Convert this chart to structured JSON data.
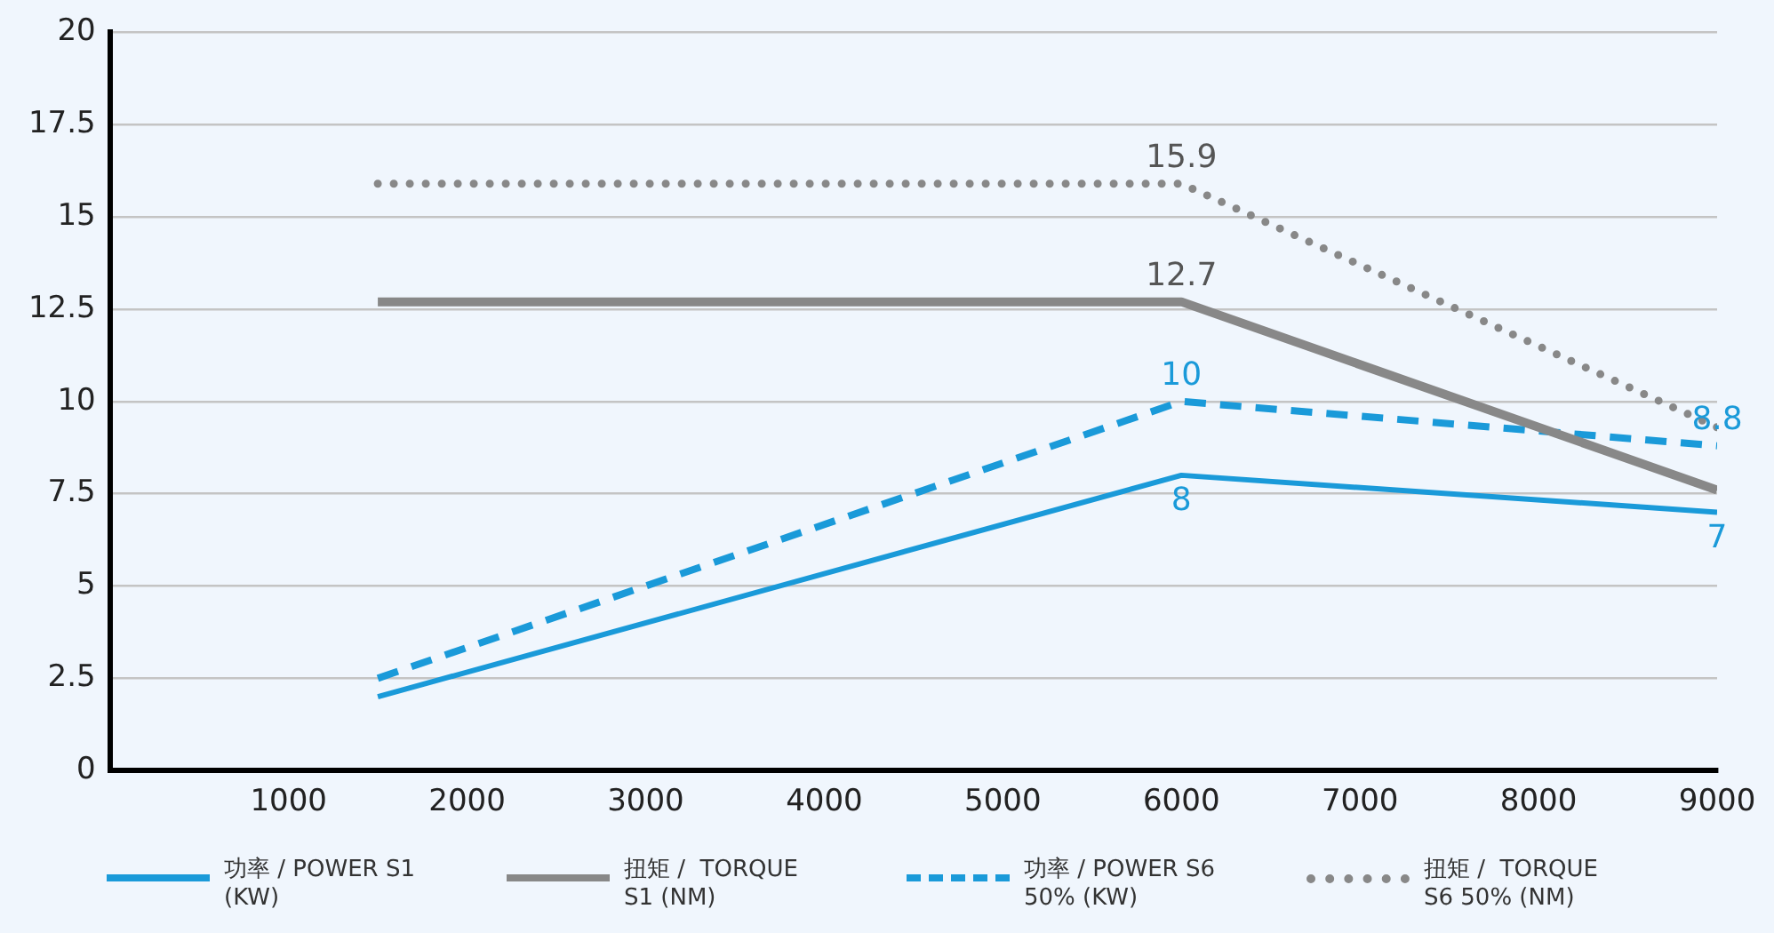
{
  "chart_data": {
    "type": "line",
    "x": [
      1500,
      6000,
      9000
    ],
    "series": [
      {
        "name": "功率 / POWER S1 (KW)",
        "color": "#1a9ad9",
        "values": [
          2,
          8,
          7
        ],
        "value_labels": [
          null,
          "8",
          "7"
        ],
        "line_style": "solid"
      },
      {
        "name": "扭矩 /  TORQUE S1 (NM)",
        "color": "#888888",
        "values": [
          12.7,
          12.7,
          7.6
        ],
        "value_labels": [
          null,
          "12.7",
          null
        ],
        "line_style": "solid"
      },
      {
        "name": "功率 / POWER S6 50% (KW)",
        "color": "#1a9ad9",
        "values": [
          2.5,
          10,
          8.8
        ],
        "value_labels": [
          null,
          "10",
          "8.8"
        ],
        "line_style": "dashed"
      },
      {
        "name": "扭矩 /  TORQUE S6 50% (NM)",
        "color": "#888888",
        "values": [
          15.9,
          15.9,
          9.3
        ],
        "value_labels": [
          null,
          "15.9",
          null
        ],
        "line_style": "dotted"
      }
    ],
    "xlim": [
      0,
      9000
    ],
    "xticks": [
      1000,
      2000,
      3000,
      4000,
      5000,
      6000,
      7000,
      8000,
      9000
    ],
    "ylim": [
      0,
      20
    ],
    "yticks": [
      0,
      2.5,
      5,
      7.5,
      10,
      12.5,
      15,
      17.5,
      20
    ],
    "grid": "y",
    "legend": "bottom",
    "marker": "none"
  }
}
